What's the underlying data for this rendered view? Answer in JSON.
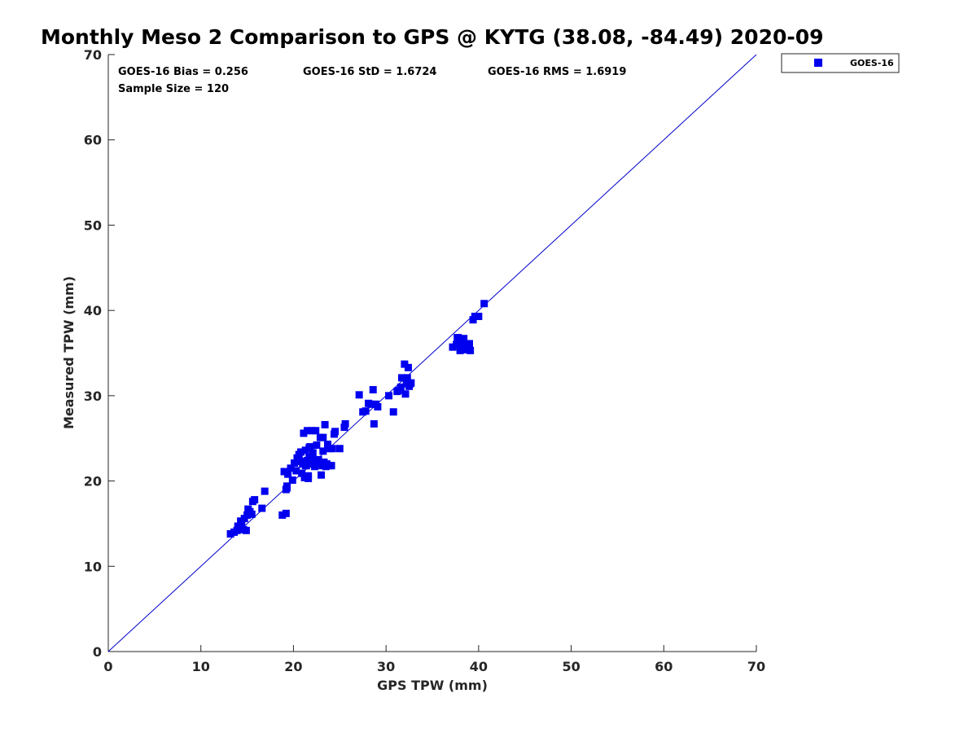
{
  "chart_data": {
    "type": "scatter",
    "title": "Monthly Meso 2 Comparison to GPS @ KYTG (38.08, -84.49) 2020-09",
    "xlabel": "GPS TPW (mm)",
    "ylabel": "Measured TPW (mm)",
    "xlim": [
      0,
      70
    ],
    "ylim": [
      0,
      70
    ],
    "xticks": [
      0,
      10,
      20,
      30,
      40,
      50,
      60,
      70
    ],
    "yticks": [
      0,
      10,
      20,
      30,
      40,
      50,
      60,
      70
    ],
    "grid": false,
    "legend_position": "outside-top-right",
    "reference_line": {
      "from": [
        0,
        0
      ],
      "to": [
        70,
        70
      ],
      "color": "#0000cc"
    },
    "stats": {
      "bias": "GOES-16 Bias = 0.256",
      "std": "GOES-16 StD = 1.6724",
      "rms": "GOES-16 RMS = 1.6919",
      "sample": "Sample Size = 120"
    },
    "series": [
      {
        "name": "GOES-16",
        "color": "#0000ee",
        "marker": "square",
        "points": [
          [
            13.2,
            13.8
          ],
          [
            13.6,
            14.0
          ],
          [
            13.9,
            14.2
          ],
          [
            14.2,
            14.5
          ],
          [
            14.4,
            14.8
          ],
          [
            14.6,
            14.3
          ],
          [
            14.9,
            14.2
          ],
          [
            14.3,
            15.3
          ],
          [
            14.7,
            15.6
          ],
          [
            15.0,
            16.0
          ],
          [
            15.2,
            16.4
          ],
          [
            15.5,
            16.1
          ],
          [
            15.1,
            16.7
          ],
          [
            15.6,
            17.6
          ],
          [
            15.8,
            17.8
          ],
          [
            16.6,
            16.8
          ],
          [
            16.9,
            18.8
          ],
          [
            18.8,
            16.0
          ],
          [
            19.2,
            16.2
          ],
          [
            19.0,
            21.1
          ],
          [
            19.2,
            19.0
          ],
          [
            19.3,
            19.4
          ],
          [
            19.4,
            20.8
          ],
          [
            19.7,
            21.5
          ],
          [
            19.9,
            20.1
          ],
          [
            20.1,
            22.1
          ],
          [
            20.3,
            21.2
          ],
          [
            20.5,
            22.6
          ],
          [
            20.6,
            23.1
          ],
          [
            20.8,
            23.4
          ],
          [
            20.9,
            20.9
          ],
          [
            21.0,
            22.0
          ],
          [
            21.1,
            25.6
          ],
          [
            21.2,
            20.4
          ],
          [
            21.3,
            23.6
          ],
          [
            21.4,
            21.8
          ],
          [
            21.5,
            25.9
          ],
          [
            21.5,
            22.4
          ],
          [
            21.6,
            20.6
          ],
          [
            21.6,
            20.3
          ],
          [
            21.7,
            23.9
          ],
          [
            21.7,
            22.8
          ],
          [
            21.8,
            24.0
          ],
          [
            21.9,
            22.1
          ],
          [
            22.0,
            25.9
          ],
          [
            22.1,
            23.3
          ],
          [
            22.2,
            22.0
          ],
          [
            22.3,
            21.7
          ],
          [
            22.4,
            25.9
          ],
          [
            22.5,
            24.2
          ],
          [
            22.6,
            22.3
          ],
          [
            22.8,
            22.0
          ],
          [
            22.9,
            25.1
          ],
          [
            23.0,
            20.7
          ],
          [
            23.1,
            21.8
          ],
          [
            23.2,
            25.1
          ],
          [
            23.2,
            23.5
          ],
          [
            23.3,
            22.2
          ],
          [
            23.4,
            26.6
          ],
          [
            23.5,
            21.7
          ],
          [
            23.7,
            24.3
          ],
          [
            23.9,
            23.8
          ],
          [
            24.0,
            21.8
          ],
          [
            24.1,
            21.8
          ],
          [
            24.2,
            23.8
          ],
          [
            24.4,
            25.5
          ],
          [
            24.5,
            25.8
          ],
          [
            25.0,
            23.8
          ],
          [
            25.5,
            26.3
          ],
          [
            25.6,
            26.7
          ],
          [
            27.1,
            30.1
          ],
          [
            27.5,
            28.1
          ],
          [
            27.8,
            28.2
          ],
          [
            28.1,
            29.1
          ],
          [
            28.4,
            29.0
          ],
          [
            28.6,
            30.7
          ],
          [
            28.7,
            26.7
          ],
          [
            28.9,
            29.0
          ],
          [
            29.1,
            28.7
          ],
          [
            30.3,
            30.0
          ],
          [
            30.8,
            28.1
          ],
          [
            31.2,
            30.5
          ],
          [
            31.6,
            31.0
          ],
          [
            31.7,
            32.1
          ],
          [
            32.0,
            33.7
          ],
          [
            32.1,
            30.2
          ],
          [
            32.2,
            31.4
          ],
          [
            32.3,
            32.1
          ],
          [
            32.4,
            33.3
          ],
          [
            32.5,
            31.1
          ],
          [
            32.6,
            31.4
          ],
          [
            32.7,
            31.5
          ],
          [
            37.2,
            35.7
          ],
          [
            37.6,
            36.0
          ],
          [
            37.8,
            36.8
          ],
          [
            38.0,
            35.3
          ],
          [
            38.2,
            35.9
          ],
          [
            38.4,
            36.7
          ],
          [
            38.6,
            35.4
          ],
          [
            38.8,
            35.9
          ],
          [
            38.9,
            35.4
          ],
          [
            39.0,
            36.1
          ],
          [
            39.1,
            35.3
          ],
          [
            39.4,
            38.9
          ],
          [
            39.6,
            39.3
          ],
          [
            40.0,
            39.3
          ],
          [
            40.6,
            40.8
          ],
          [
            20.4,
            22.7
          ],
          [
            21.3,
            21.8
          ],
          [
            22.0,
            22.5
          ],
          [
            23.6,
            22.0
          ],
          [
            21.8,
            24.0
          ],
          [
            20.8,
            22.3
          ],
          [
            22.7,
            22.5
          ],
          [
            15.3,
            16.4
          ],
          [
            14.0,
            14.7
          ],
          [
            19.3,
            19.2
          ],
          [
            31.3,
            30.6
          ],
          [
            37.7,
            36.8
          ],
          [
            38.3,
            36.2
          ]
        ]
      }
    ]
  }
}
